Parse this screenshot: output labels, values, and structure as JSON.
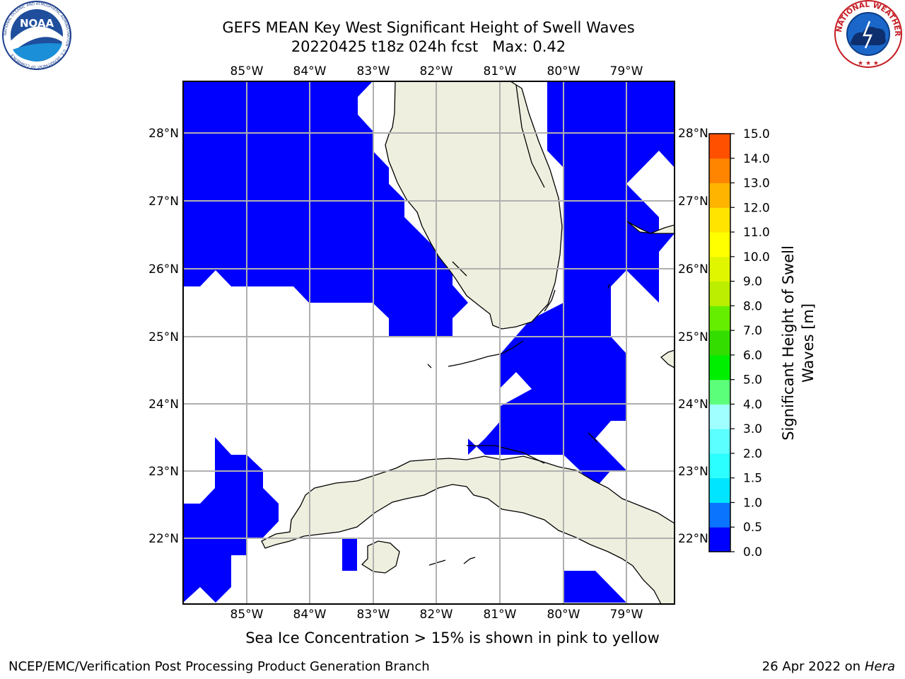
{
  "title": {
    "line1": "GEFS MEAN Key West Significant Height of Swell Waves",
    "line2": "20220425 t18z 024h fcst   Max: 0.42"
  },
  "map": {
    "lon_range": [
      -86.0,
      -78.25
    ],
    "lat_range": [
      21.0,
      28.8
    ],
    "lon_ticks": [
      "85°W",
      "84°W",
      "83°W",
      "82°W",
      "81°W",
      "80°W",
      "79°W"
    ],
    "lat_ticks": [
      "28°N",
      "27°N",
      "26°N",
      "25°N",
      "24°N",
      "23°N",
      "22°N"
    ],
    "land_color": "#efefdf",
    "swell_color": "#0000ff",
    "grid_color": "#b0b0b0"
  },
  "colorbar": {
    "label_line1": "Significant Height of Swell",
    "label_line2": "Waves [m]",
    "ticks": [
      "0.0",
      "0.5",
      "1.0",
      "1.5",
      "2.0",
      "3.0",
      "4.0",
      "5.0",
      "6.0",
      "7.0",
      "8.0",
      "9.0",
      "10.0",
      "11.0",
      "12.0",
      "13.0",
      "14.0",
      "15.0"
    ],
    "colors": [
      "#0000ff",
      "#0a74ff",
      "#00e5ff",
      "#2cffff",
      "#5cffff",
      "#a0ffff",
      "#5cff7a",
      "#00ee00",
      "#33dd00",
      "#66ee00",
      "#bbee00",
      "#e0f500",
      "#ffff00",
      "#ffe400",
      "#ffb400",
      "#ff8400",
      "#ff5000",
      "#ff2400",
      "#ff0000"
    ]
  },
  "note": "Sea Ice Concentration > 15% is shown in pink to yellow",
  "footer": {
    "left": "NCEP/EMC/Verification Post Processing Product Generation Branch",
    "right_date": "26 Apr 2022 on ",
    "right_host": "Hera"
  },
  "logos": {
    "noaa_text": "NOAA",
    "noaa_ring": "NATIONAL OCEANIC AND ATMOSPHERIC ADMINISTRATION · U.S. DEPARTMENT OF COMMERCE",
    "nws_ring": "NATIONAL WEATHER SERVICE"
  }
}
